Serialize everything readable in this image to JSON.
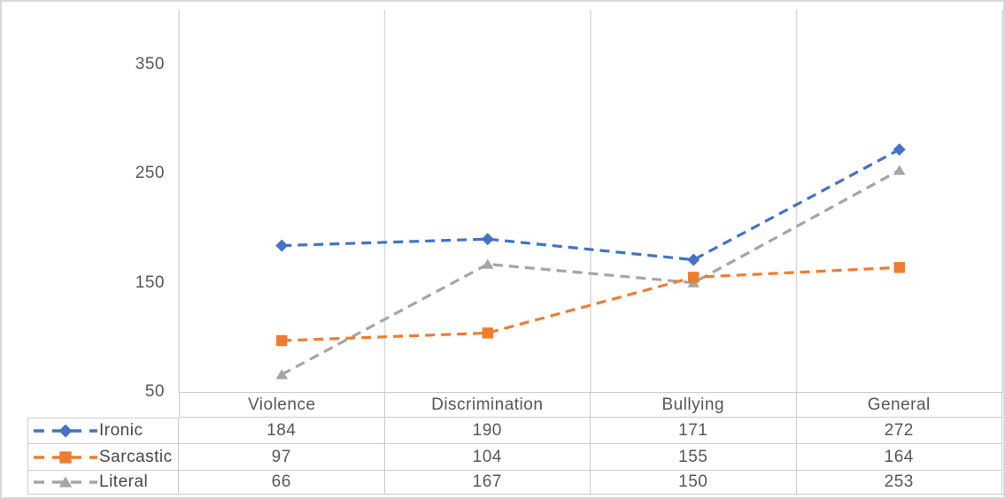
{
  "chart_data": {
    "type": "line",
    "title": "",
    "categories": [
      "Violence",
      "Discrimination",
      "Bullying",
      "General"
    ],
    "series": [
      {
        "name": "Ironic",
        "color": "#4472C4",
        "marker": "diamond",
        "values": [
          184,
          190,
          171,
          272
        ]
      },
      {
        "name": "Sarcastic",
        "color": "#ED7D31",
        "marker": "square",
        "values": [
          97,
          104,
          155,
          164
        ]
      },
      {
        "name": "Literal",
        "color": "#A5A5A5",
        "marker": "triangle",
        "values": [
          66,
          167,
          150,
          253
        ]
      }
    ],
    "y_ticks": [
      350,
      250,
      150,
      50
    ],
    "ylim": [
      50,
      400
    ],
    "line_style": "dashed",
    "gridlines": "vertical",
    "legend_position": "table-left",
    "grid_color": "#D9D9D9",
    "table_border_color": "#CCCCCC",
    "text_color": "#575757"
  }
}
